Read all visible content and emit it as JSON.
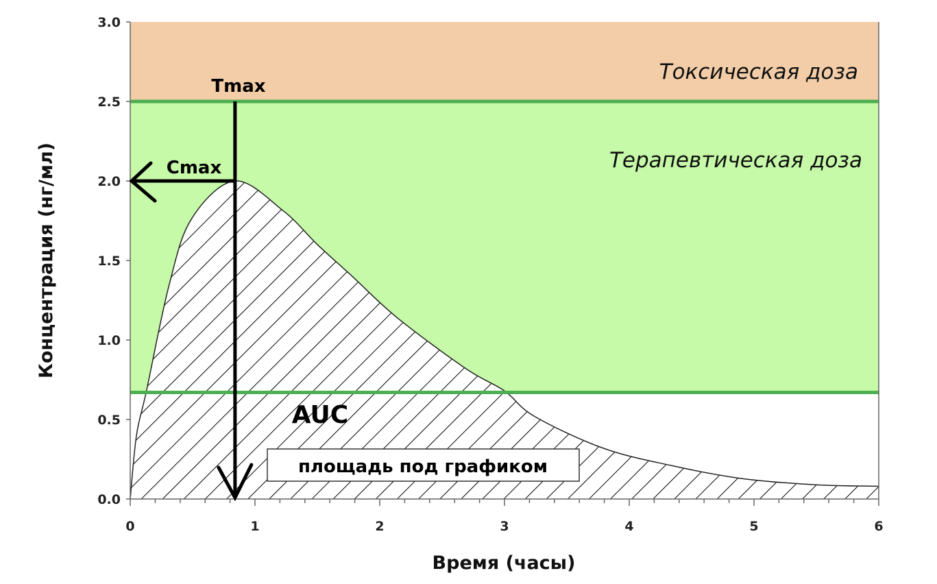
{
  "chart_data": {
    "type": "area",
    "title": "",
    "xlabel": "Время (часы)",
    "ylabel": "Концентрация (нг/мл)",
    "xlim": [
      0,
      6
    ],
    "ylim": [
      0,
      3.0
    ],
    "x_ticks": [
      "0",
      "1",
      "2",
      "3",
      "4",
      "5",
      "6"
    ],
    "y_ticks": [
      "0.0",
      "0.5",
      "1.0",
      "1.5",
      "2.0",
      "2.5",
      "3.0"
    ],
    "series": [
      {
        "name": "Концентрация",
        "x": [
          0,
          0.05,
          0.13,
          0.31,
          0.49,
          0.84,
          1.23,
          1.5,
          1.78,
          2.14,
          2.69,
          3.0,
          3.24,
          3.79,
          4.34,
          4.89,
          5.48,
          6.0
        ],
        "y": [
          0,
          0.4,
          0.68,
          1.34,
          1.76,
          2.0,
          1.81,
          1.6,
          1.4,
          1.14,
          0.82,
          0.68,
          0.52,
          0.32,
          0.21,
          0.13,
          0.09,
          0.08
        ]
      }
    ],
    "bands": [
      {
        "label": "Токсическая доза",
        "from": 2.5,
        "to": 3.0,
        "color": "#f2cda8"
      },
      {
        "label": "Терапевтическая доза",
        "from": 0.67,
        "to": 2.5,
        "color": "#c6f9a8"
      }
    ],
    "band_line_color": "#4caf50",
    "annotations": {
      "tmax": {
        "label": "Tmax",
        "x": 0.84
      },
      "cmax": {
        "label": "Cmax",
        "y": 2.0
      },
      "auc": {
        "label": "AUC"
      },
      "auc_box": {
        "label": "площадь под графиком"
      }
    }
  }
}
